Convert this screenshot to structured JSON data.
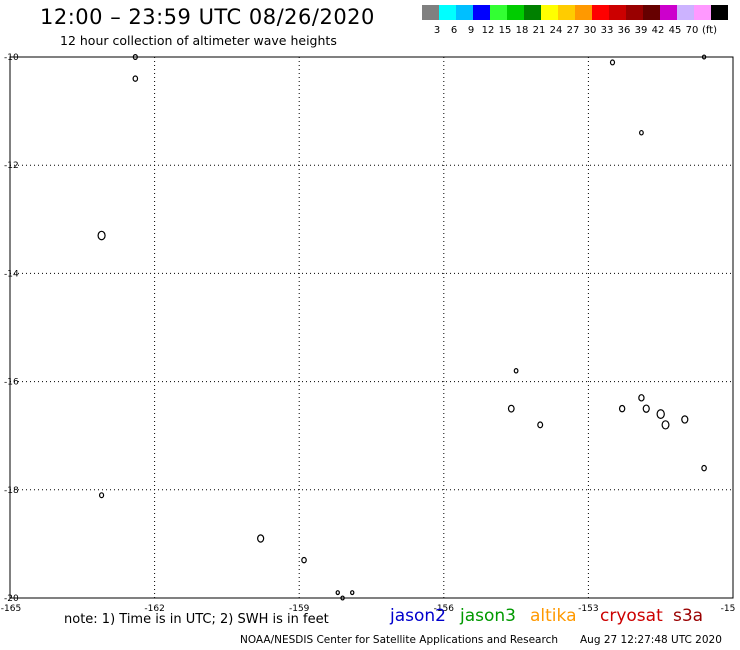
{
  "header": {
    "title": "12:00 – 23:59 UTC 08/26/2020",
    "subtitle": "12 hour collection of altimeter wave heights"
  },
  "scale": {
    "colors": [
      "#808080",
      "#00ffff",
      "#00bfff",
      "#0000ff",
      "#33ff33",
      "#00cc00",
      "#008000",
      "#ffff00",
      "#ffcc00",
      "#ff9900",
      "#ff0000",
      "#cc0000",
      "#990000",
      "#660000",
      "#cc00cc",
      "#ccb3ff",
      "#ff99ff",
      "#000000"
    ],
    "labels": [
      "3",
      "6",
      "9",
      "12",
      "15",
      "18",
      "21",
      "24",
      "27",
      "30",
      "33",
      "36",
      "39",
      "42",
      "45",
      "70"
    ],
    "unit": "(ft)"
  },
  "map": {
    "lon_ticks": [
      "-165",
      "-162",
      "-159",
      "-156",
      "-153",
      "-15"
    ],
    "lat_ticks": [
      "-10",
      "-12",
      "-14",
      "-16",
      "-18",
      "-20"
    ],
    "islands": [
      {
        "name": "island-nw-1",
        "lon": -162.4,
        "lat": -10.0
      },
      {
        "name": "island-nw-2",
        "lon": -162.4,
        "lat": -10.4
      },
      {
        "name": "island-w",
        "lon": -163.1,
        "lat": -13.3
      },
      {
        "name": "island-sw",
        "lon": -163.1,
        "lat": -18.1
      },
      {
        "name": "island-s-1",
        "lon": -159.8,
        "lat": -18.9
      },
      {
        "name": "island-s-2",
        "lon": -158.9,
        "lat": -19.3
      },
      {
        "name": "island-s-3",
        "lon": -158.2,
        "lat": -19.9
      },
      {
        "name": "island-s-4",
        "lon": -157.9,
        "lat": -19.9
      },
      {
        "name": "island-s-5",
        "lon": -158.1,
        "lat": -20.0
      },
      {
        "name": "island-c-1",
        "lon": -154.5,
        "lat": -15.8
      },
      {
        "name": "island-c-2",
        "lon": -154.6,
        "lat": -16.5
      },
      {
        "name": "island-c-3",
        "lon": -154.0,
        "lat": -16.8
      },
      {
        "name": "island-ne-1",
        "lon": -152.5,
        "lat": -10.1
      },
      {
        "name": "island-ne-2",
        "lon": -151.9,
        "lat": -11.4
      },
      {
        "name": "island-ne-3",
        "lon": -150.6,
        "lat": -10.0
      },
      {
        "name": "island-e-1",
        "lon": -152.3,
        "lat": -16.5
      },
      {
        "name": "island-e-2",
        "lon": -151.9,
        "lat": -16.3
      },
      {
        "name": "island-e-3",
        "lon": -151.8,
        "lat": -16.5
      },
      {
        "name": "island-e-4",
        "lon": -151.5,
        "lat": -16.6
      },
      {
        "name": "island-e-5",
        "lon": -151.4,
        "lat": -16.8
      },
      {
        "name": "island-e-6",
        "lon": -151.0,
        "lat": -16.7
      },
      {
        "name": "island-e-7",
        "lon": -150.6,
        "lat": -17.6
      }
    ]
  },
  "footer": {
    "note": "note: 1) Time is in UTC; 2) SWH is in feet",
    "satellites": [
      {
        "name": "jason2",
        "color": "#0000cc"
      },
      {
        "name": "jason3",
        "color": "#009900"
      },
      {
        "name": "altika",
        "color": "#ff9900"
      },
      {
        "name": "cryosat",
        "color": "#cc0000"
      },
      {
        "name": "s3a",
        "color": "#990000"
      }
    ],
    "credit": "NOAA/NESDIS Center for Satellite Applications and Research",
    "timestamp": "Aug 27 12:27:48 UTC 2020"
  }
}
